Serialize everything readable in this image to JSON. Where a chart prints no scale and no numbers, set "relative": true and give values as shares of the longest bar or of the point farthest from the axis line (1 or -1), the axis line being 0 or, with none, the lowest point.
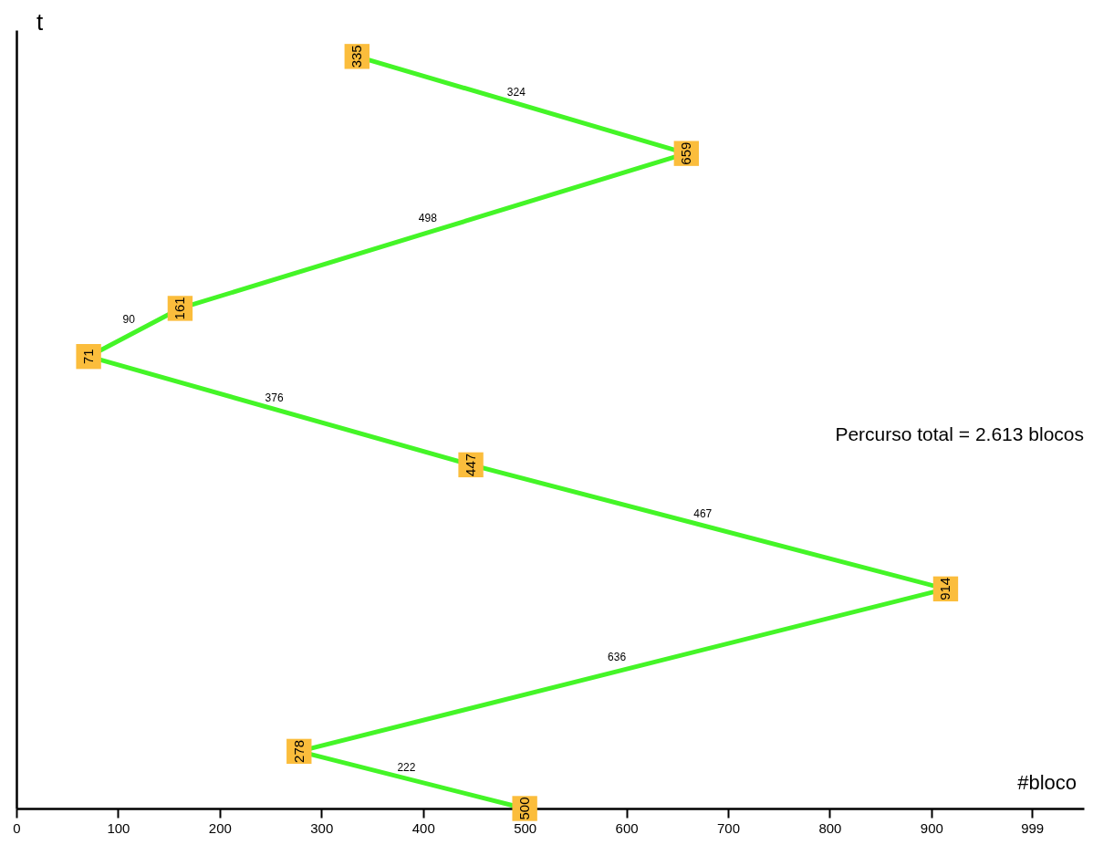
{
  "chart_data": {
    "type": "line",
    "xlabel": "#bloco",
    "ylabel": "t",
    "relative": true,
    "marker": "square",
    "line_style": "solid",
    "xlim": [
      0,
      1050
    ],
    "xticks": [
      0,
      100,
      200,
      300,
      400,
      500,
      600,
      700,
      800,
      900,
      999
    ],
    "x": [
      500,
      278,
      914,
      447,
      71,
      161,
      659,
      335
    ],
    "series": [
      {
        "color": "#44f527",
        "values": [
          0,
          0.076,
          0.292,
          0.457,
          0.601,
          0.665,
          0.871,
          1
        ]
      }
    ],
    "annotations": [
      {
        "text": "500",
        "x": 500,
        "y": 0
      },
      {
        "text": "278",
        "x": 278,
        "y": 0.076
      },
      {
        "text": "914",
        "x": 914,
        "y": 0.292
      },
      {
        "text": "447",
        "x": 447,
        "y": 0.457
      },
      {
        "text": "71",
        "x": 71,
        "y": 0.601
      },
      {
        "text": "161",
        "x": 161,
        "y": 0.665
      },
      {
        "text": "659",
        "x": 659,
        "y": 0.871
      },
      {
        "text": "335",
        "x": 335,
        "y": 1
      },
      {
        "text": "222",
        "x": 389,
        "y": 0.038
      },
      {
        "text": "636",
        "x": 596,
        "y": 0.184
      },
      {
        "text": "467",
        "x": 680.5,
        "y": 0.3745
      },
      {
        "text": "376",
        "x": 259,
        "y": 0.529
      },
      {
        "text": "90",
        "x": 116,
        "y": 0.633
      },
      {
        "text": "498",
        "x": 410,
        "y": 0.768
      },
      {
        "text": "324",
        "x": 497,
        "y": 0.9355
      },
      "Percurso total = 2.613 blocos"
    ]
  }
}
